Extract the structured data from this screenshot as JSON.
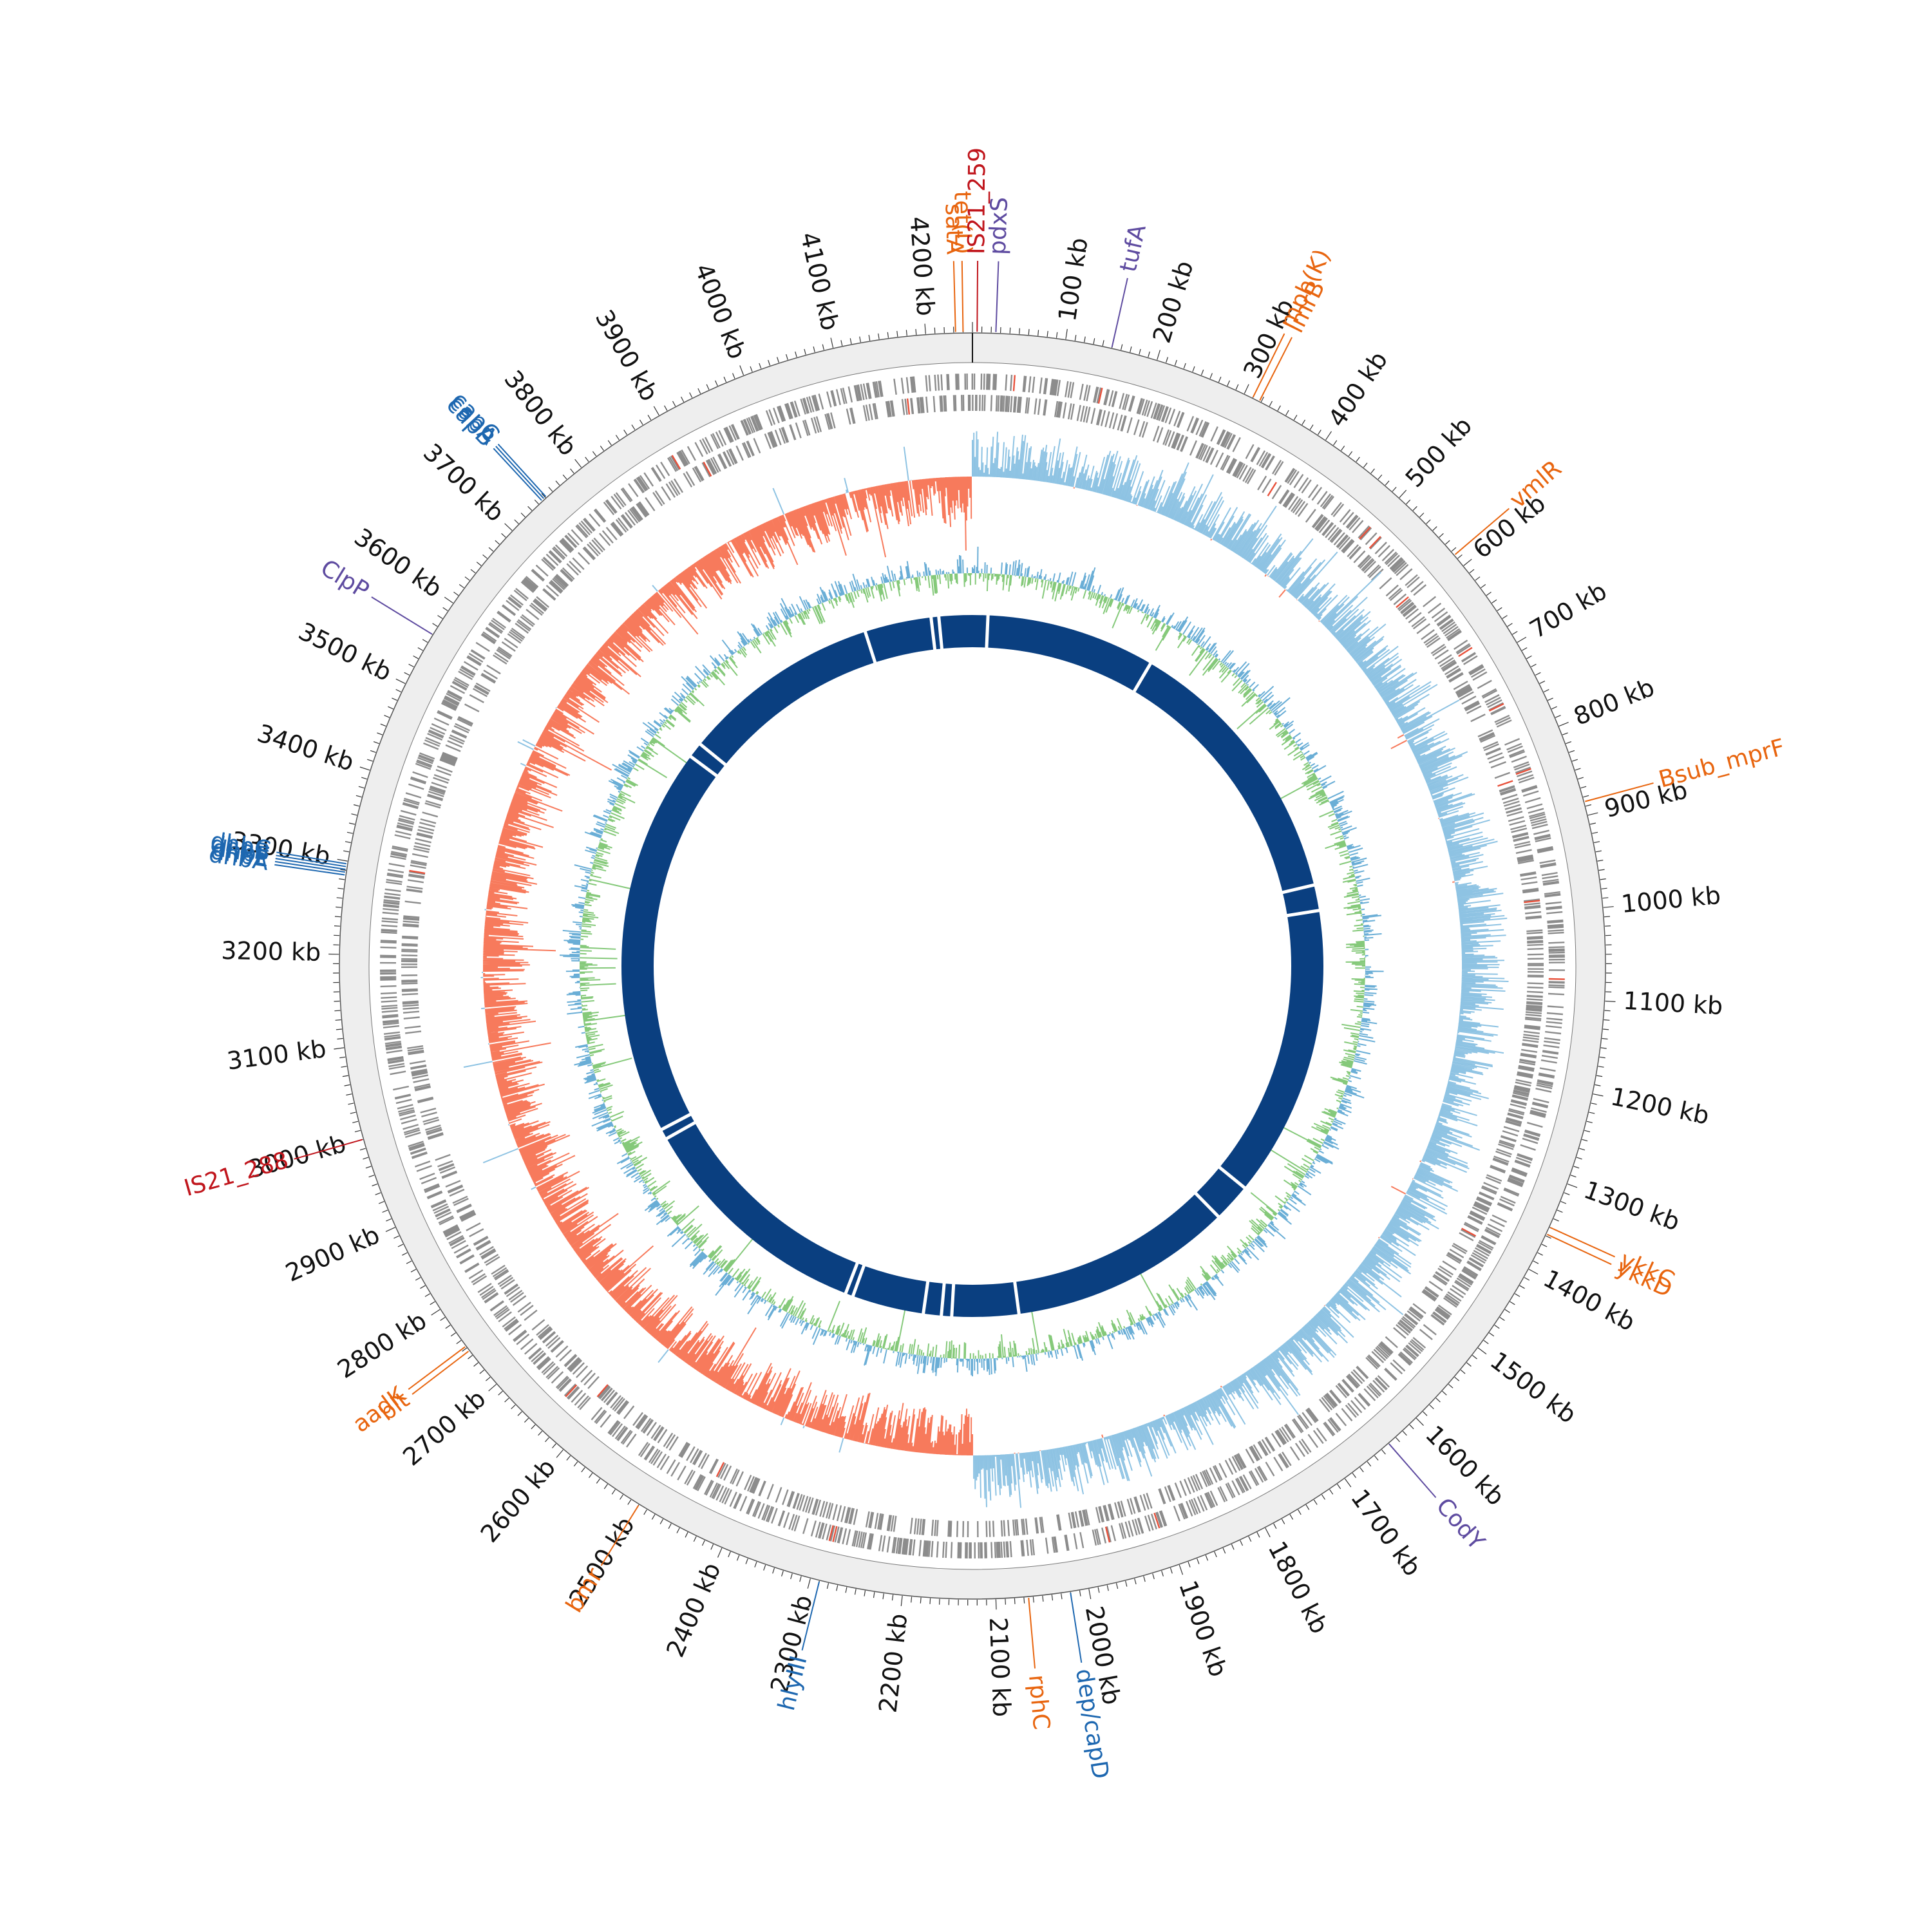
{
  "genome": {
    "length_kb": 4250,
    "tick_labels": [
      "100 kb",
      "200 kb",
      "300 kb",
      "400 kb",
      "500 kb",
      "600 kb",
      "700 kb",
      "800 kb",
      "900 kb",
      "1000 kb",
      "1100 kb",
      "1200 kb",
      "1300 kb",
      "1400 kb",
      "1500 kb",
      "1600 kb",
      "1700 kb",
      "1800 kb",
      "1900 kb",
      "2000 kb",
      "2100 kb",
      "2200 kb",
      "2300 kb",
      "2400 kb",
      "2500 kb",
      "2600 kb",
      "2700 kb",
      "2800 kb",
      "2900 kb",
      "3000 kb",
      "3100 kb",
      "3200 kb",
      "3300 kb",
      "3400 kb",
      "3500 kb",
      "3600 kb",
      "3700 kb",
      "3800 kb",
      "3900 kb",
      "4000 kb",
      "4100 kb",
      "4200 kb"
    ]
  },
  "annotations": [
    {
      "label": "satA",
      "kb": 4232,
      "category": "resistance"
    },
    {
      "label": "tet(L)",
      "kb": 4240,
      "category": "resistance"
    },
    {
      "label": "IS21_259",
      "kb": 5,
      "category": "mobile"
    },
    {
      "label": "pdxS",
      "kb": 25,
      "category": "regulator"
    },
    {
      "label": "tufA",
      "kb": 150,
      "category": "regulator"
    },
    {
      "label": "mph(K)",
      "kb": 310,
      "category": "resistance"
    },
    {
      "label": "lmrB",
      "kb": 318,
      "category": "resistance"
    },
    {
      "label": "vmlR",
      "kb": 585,
      "category": "resistance"
    },
    {
      "label": "Bsub_mprF",
      "kb": 885,
      "category": "resistance"
    },
    {
      "label": "ykkC",
      "kb": 1350,
      "category": "resistance"
    },
    {
      "label": "ykkD",
      "kb": 1358,
      "category": "resistance"
    },
    {
      "label": "CodY",
      "kb": 1640,
      "category": "regulator"
    },
    {
      "label": "dep/capD",
      "kb": 2020,
      "category": "virulence"
    },
    {
      "label": "rphC",
      "kb": 2065,
      "category": "resistance"
    },
    {
      "label": "hlyIII",
      "kb": 2290,
      "category": "virulence"
    },
    {
      "label": "bmr",
      "kb": 2500,
      "category": "resistance"
    },
    {
      "label": "blt",
      "kb": 2746,
      "category": "resistance"
    },
    {
      "label": "aadK",
      "kb": 2752,
      "category": "resistance"
    },
    {
      "label": "IS21_288",
      "kb": 3000,
      "category": "mobile"
    },
    {
      "label": "dhbA",
      "kb": 3285,
      "category": "virulence"
    },
    {
      "label": "dhbE",
      "kb": 3288,
      "category": "virulence"
    },
    {
      "label": "dhbF",
      "kb": 3291,
      "category": "virulence"
    },
    {
      "label": "dhbB",
      "kb": 3294,
      "category": "virulence"
    },
    {
      "label": "dhbC",
      "kb": 3297,
      "category": "virulence"
    },
    {
      "label": "ClpP",
      "kb": 3560,
      "category": "regulator"
    },
    {
      "label": "capB",
      "kb": 3745,
      "category": "virulence"
    },
    {
      "label": "capA",
      "kb": 3748,
      "category": "virulence"
    },
    {
      "label": "capC",
      "kb": 3751,
      "category": "virulence"
    }
  ],
  "colors": {
    "resistance": "#e8650f",
    "mobile": "#c0151c",
    "regulator": "#5e4ba0",
    "virulence": "#1d67b0",
    "skew_negative": "#f77a5c",
    "skew_positive": "#8ec3e3",
    "gc_high": "#6aaed6",
    "gc_low": "#85c97a",
    "contigs": "#0a3f80",
    "cds": "#8c8c8c",
    "outer_ring": "#eeeeee"
  }
}
